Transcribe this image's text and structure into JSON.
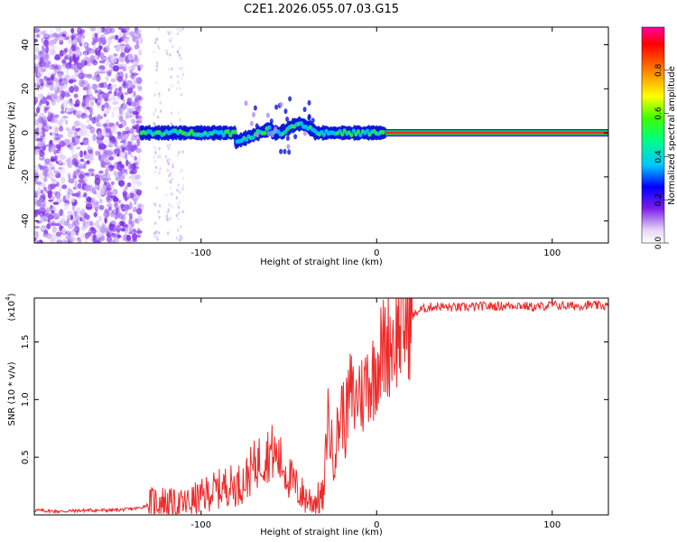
{
  "figure_title": "C2E1.2026.055.07.03.G15",
  "chart_data": [
    {
      "type": "heatmap",
      "title": "C2E1.2026.055.07.03.G15",
      "xlabel": "Height of straight line (km)",
      "ylabel": "Frequency (Hz)",
      "xlim": [
        -195,
        132
      ],
      "ylim": [
        -50,
        48
      ],
      "xticks": [
        -100,
        0,
        100
      ],
      "yticks": [
        -40,
        -20,
        0,
        20,
        40
      ],
      "colorbar": {
        "label": "Normalized spectral amplitude",
        "range": [
          0,
          1
        ],
        "ticks": [
          "0.0",
          "0.2",
          "0.4",
          "0.6",
          "0.8"
        ],
        "colors": [
          "#ffffff",
          "#e6d6f7",
          "#7b1ee8",
          "#0000ff",
          "#00c8ff",
          "#00ff80",
          "#40ff00",
          "#ffff00",
          "#ff8000",
          "#ff0000",
          "#ff00a0"
        ]
      },
      "features": {
        "noise_region_x": [
          -195,
          -134
        ],
        "scattered_noise_x": [
          -134,
          -110
        ],
        "signal_centerline_hz": 0,
        "strong_line_start_km": 5,
        "strong_line_end_km": 132
      }
    },
    {
      "type": "line",
      "xlabel": "Height of straight line (km)",
      "ylabel": "SNR (10 * v/v)",
      "y_multiplier": "(x10",
      "y_multiplier_exp": "4",
      "xlim": [
        -195,
        132
      ],
      "ylim": [
        0,
        1.88
      ],
      "xticks": [
        -100,
        0,
        100
      ],
      "yticks": [
        0.5,
        1.0,
        1.5
      ],
      "ytick_labels": [
        "0.5",
        "1.0",
        "1.5"
      ],
      "line_color": "#ee2a2a",
      "series": [
        {
          "name": "SNR",
          "x": [
            -195,
            -180,
            -165,
            -150,
            -140,
            -135,
            -130,
            -125,
            -120,
            -115,
            -110,
            -105,
            -100,
            -95,
            -90,
            -85,
            -80,
            -75,
            -70,
            -65,
            -60,
            -55,
            -50,
            -45,
            -40,
            -35,
            -30,
            -28,
            -25,
            -22,
            -20,
            -18,
            -15,
            -12,
            -10,
            -8,
            -5,
            -3,
            0,
            3,
            6,
            10,
            15,
            20,
            25,
            30,
            35,
            40,
            50,
            60,
            70,
            80,
            90,
            100,
            110,
            120,
            132
          ],
          "values": [
            0.04,
            0.03,
            0.04,
            0.04,
            0.05,
            0.06,
            0.09,
            0.12,
            0.11,
            0.08,
            0.09,
            0.12,
            0.15,
            0.2,
            0.22,
            0.26,
            0.25,
            0.3,
            0.42,
            0.5,
            0.55,
            0.47,
            0.33,
            0.22,
            0.14,
            0.12,
            0.16,
            0.9,
            0.5,
            0.72,
            0.95,
            0.78,
            1.08,
            0.95,
            1.12,
            1.02,
            1.22,
            1.15,
            1.32,
            1.42,
            1.48,
            1.55,
            1.64,
            1.72,
            1.78,
            1.8,
            1.81,
            1.8,
            1.8,
            1.81,
            1.81,
            1.82,
            1.8,
            1.82,
            1.81,
            1.82,
            1.81
          ]
        }
      ]
    }
  ]
}
